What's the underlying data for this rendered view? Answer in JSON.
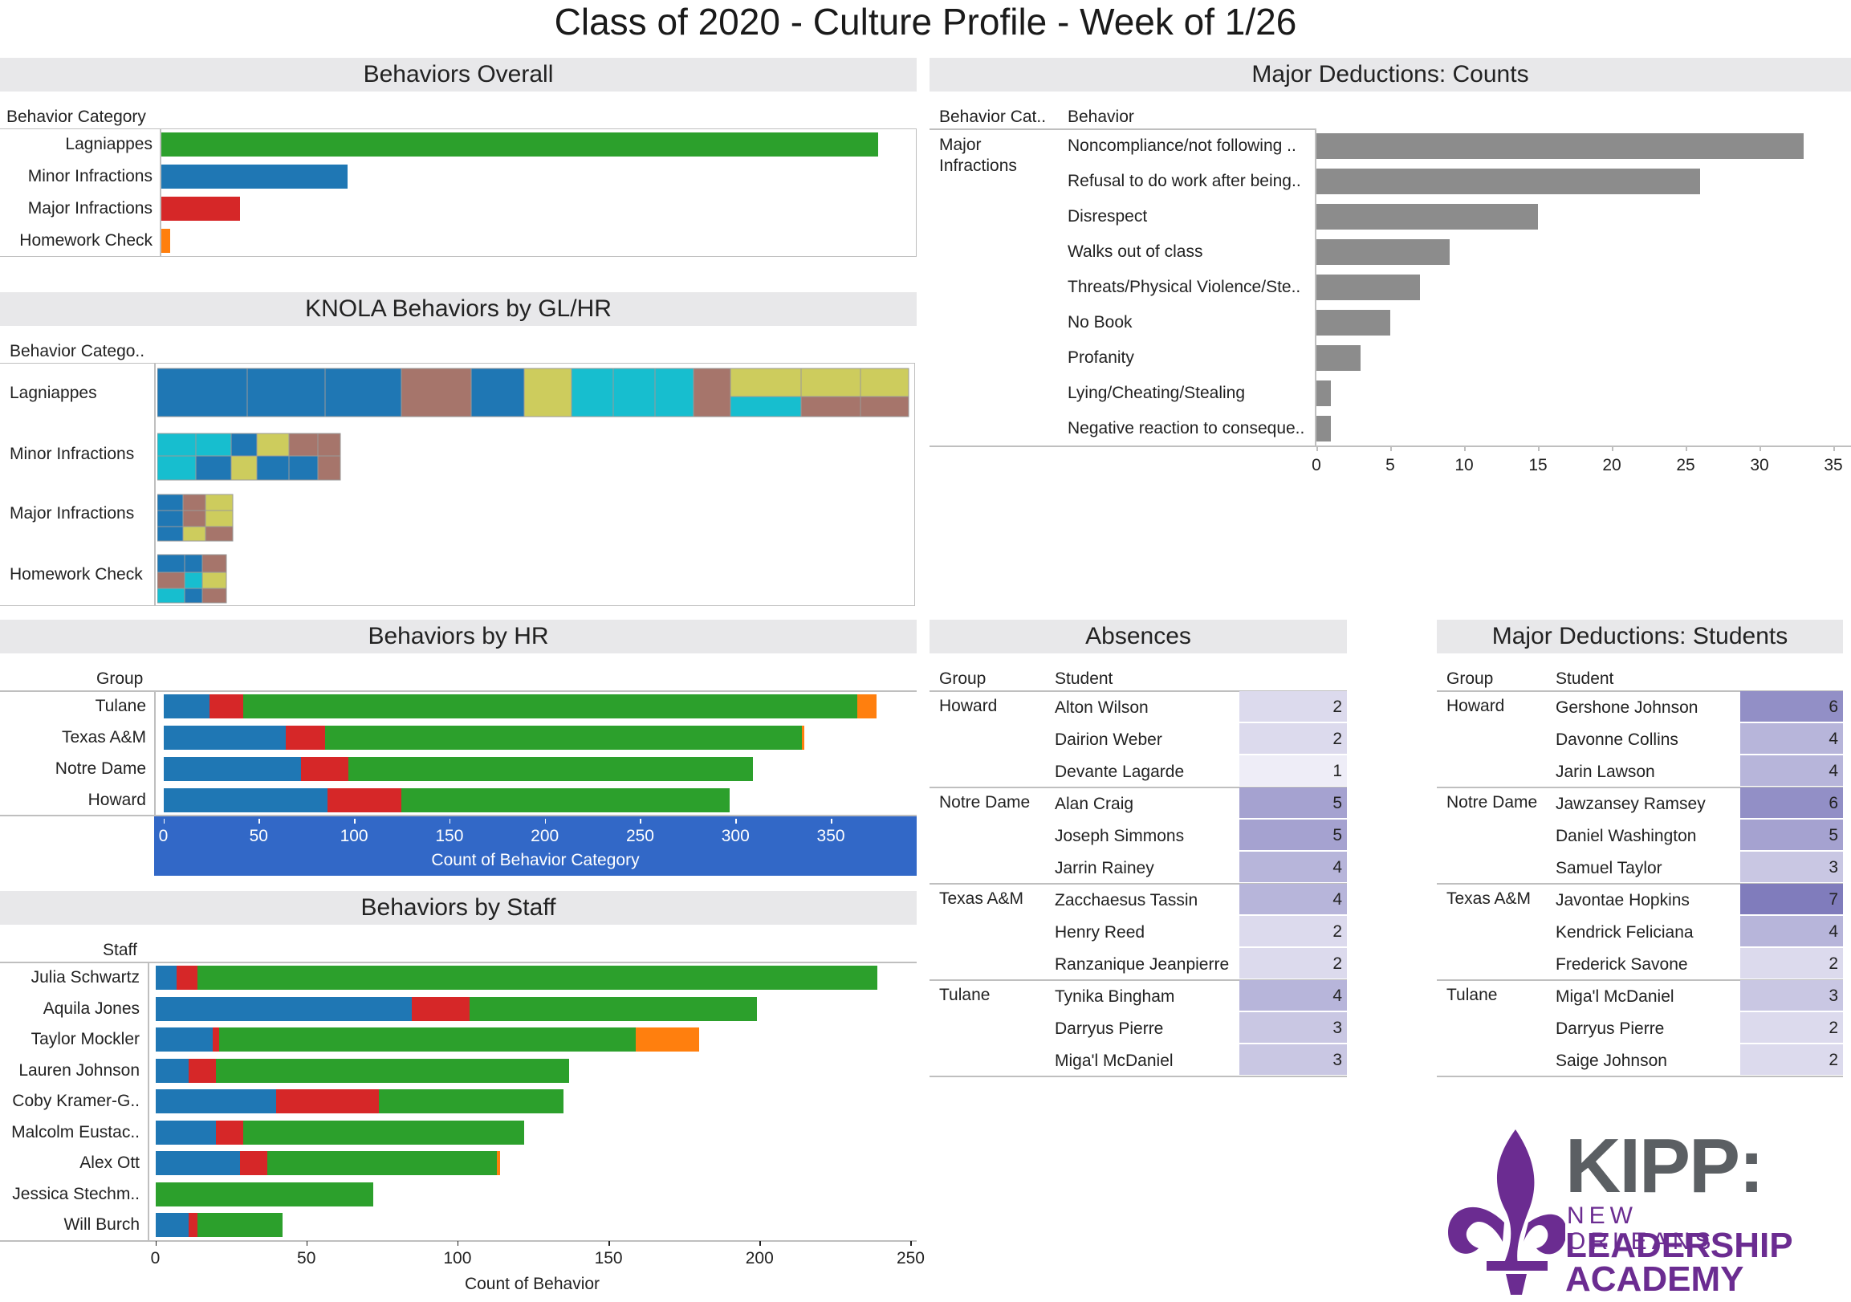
{
  "page_title": "Class of 2020 - Culture Profile - Week of 1/26",
  "colors": {
    "lagniappes": "#2ca02c",
    "minor": "#1f77b4",
    "major": "#d62728",
    "homework": "#ff7f0e",
    "gray_bar": "#8c8c8c",
    "axis_band": "#3268c7",
    "band_bg": "#e8e8ea",
    "teal": "#17becf",
    "rose": "#a6756b",
    "olive": "#cdcc5d",
    "kipp_purple": "#6b2c91",
    "kipp_text": "#5b5f63"
  },
  "chart_data": [
    {
      "id": "behaviors_overall",
      "type": "bar",
      "title": "Behaviors Overall",
      "header": "Behavior Category",
      "categories": [
        "Lagniappes",
        "Minor Infractions",
        "Major Infractions",
        "Homework Check"
      ],
      "values": [
        1000,
        260,
        110,
        12
      ]
    },
    {
      "id": "knola_treemap",
      "type": "heatmap",
      "title": "KNOLA Behaviors by GL/HR",
      "header": "Behavior Catego..",
      "categories": [
        "Lagniappes",
        "Minor Infractions",
        "Major Infractions",
        "Homework Check"
      ]
    },
    {
      "id": "major_deductions_counts",
      "type": "bar",
      "title": "Major Deductions: Counts",
      "headers": [
        "Behavior Cat..",
        "Behavior"
      ],
      "group": "Major Infractions",
      "categories": [
        "Noncompliance/not following ..",
        "Refusal to do work after being..",
        "Disrespect",
        "Walks out of class",
        "Threats/Physical Violence/Ste..",
        "No Book",
        "Profanity",
        "Lying/Cheating/Stealing",
        "Negative reaction to conseque.."
      ],
      "values": [
        33,
        26,
        15,
        9,
        7,
        5,
        3,
        1,
        1
      ],
      "xlim": [
        0,
        35
      ],
      "xticks": [
        0,
        5,
        10,
        15,
        20,
        25,
        30,
        35
      ]
    },
    {
      "id": "behaviors_by_hr",
      "type": "bar",
      "title": "Behaviors by HR",
      "header": "Group",
      "xlabel": "Count of Behavior Category",
      "categories": [
        "Tulane",
        "Texas A&M",
        "Notre Dame",
        "Howard"
      ],
      "series": [
        {
          "key": "minor",
          "values": [
            24,
            64,
            72,
            86
          ]
        },
        {
          "key": "major",
          "values": [
            18,
            21,
            25,
            39
          ]
        },
        {
          "key": "lagniappes",
          "values": [
            322,
            250,
            212,
            172
          ]
        },
        {
          "key": "homework",
          "values": [
            10,
            1,
            0,
            0
          ]
        }
      ],
      "xlim": [
        -4,
        395
      ],
      "xticks": [
        0,
        50,
        100,
        150,
        200,
        250,
        300,
        350
      ]
    },
    {
      "id": "behaviors_by_staff",
      "type": "bar",
      "title": "Behaviors by Staff",
      "header": "Staff",
      "xlabel": "Count of Behavior",
      "categories": [
        "Julia Schwartz",
        "Aquila Jones",
        "Taylor Mockler",
        "Lauren Johnson",
        "Coby Kramer-G..",
        "Malcolm Eustac..",
        "Alex Ott",
        "Jessica Stechm..",
        "Will Burch"
      ],
      "series": [
        {
          "key": "minor",
          "values": [
            7,
            85,
            19,
            11,
            40,
            20,
            28,
            0,
            11
          ]
        },
        {
          "key": "major",
          "values": [
            7,
            19,
            2,
            9,
            34,
            9,
            9,
            0,
            3
          ]
        },
        {
          "key": "lagniappes",
          "values": [
            225,
            95,
            138,
            117,
            61,
            93,
            76,
            72,
            28
          ]
        },
        {
          "key": "homework",
          "values": [
            0,
            0,
            21,
            0,
            0,
            0,
            1,
            0,
            0
          ]
        }
      ],
      "xlim": [
        -2,
        252
      ],
      "xticks": [
        0,
        50,
        100,
        150,
        200,
        250
      ]
    }
  ],
  "absences": {
    "title": "Absences",
    "headers": [
      "Group",
      "Student"
    ],
    "groups": [
      {
        "group": "Howard",
        "rows": [
          {
            "student": "Alton Wilson",
            "value": 2
          },
          {
            "student": "Dairion Weber",
            "value": 2
          },
          {
            "student": "Devante Lagarde",
            "value": 1
          }
        ]
      },
      {
        "group": "Notre Dame",
        "rows": [
          {
            "student": "Alan Craig",
            "value": 5
          },
          {
            "student": "Joseph Simmons",
            "value": 5
          },
          {
            "student": "Jarrin Rainey",
            "value": 4
          }
        ]
      },
      {
        "group": "Texas A&M",
        "rows": [
          {
            "student": "Zacchaesus Tassin",
            "value": 4
          },
          {
            "student": "Henry Reed",
            "value": 2
          },
          {
            "student": "Ranzanique Jeanpierre",
            "value": 2
          }
        ]
      },
      {
        "group": "Tulane",
        "rows": [
          {
            "student": "Tynika Bingham",
            "value": 4
          },
          {
            "student": "Darryus Pierre",
            "value": 3
          },
          {
            "student": "Miga'l McDaniel",
            "value": 3
          }
        ]
      }
    ]
  },
  "major_students": {
    "title": "Major Deductions: Students",
    "headers": [
      "Group",
      "Student"
    ],
    "groups": [
      {
        "group": "Howard",
        "rows": [
          {
            "student": "Gershone Johnson",
            "value": 6
          },
          {
            "student": "Davonne Collins",
            "value": 4
          },
          {
            "student": "Jarin Lawson",
            "value": 4
          }
        ]
      },
      {
        "group": "Notre Dame",
        "rows": [
          {
            "student": "Jawzansey Ramsey",
            "value": 6
          },
          {
            "student": "Daniel Washington",
            "value": 5
          },
          {
            "student": "Samuel Taylor",
            "value": 3
          }
        ]
      },
      {
        "group": "Texas A&M",
        "rows": [
          {
            "student": "Javontae Hopkins",
            "value": 7
          },
          {
            "student": "Kendrick Feliciana",
            "value": 4
          },
          {
            "student": "Frederick Savone",
            "value": 2
          }
        ]
      },
      {
        "group": "Tulane",
        "rows": [
          {
            "student": "Miga'l McDaniel",
            "value": 3
          },
          {
            "student": "Darryus Pierre",
            "value": 2
          },
          {
            "student": "Saige Johnson",
            "value": 2
          }
        ]
      }
    ]
  },
  "logo": {
    "line1": "KIPP:",
    "line2": "NEW ORLEANS",
    "line3": "LEADERSHIP",
    "line4": "ACADEMY"
  }
}
